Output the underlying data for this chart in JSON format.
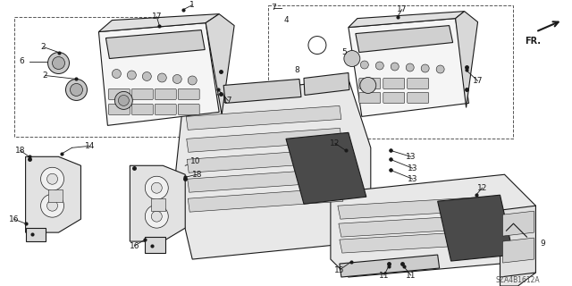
{
  "bg_color": "#ffffff",
  "diagram_id": "SZA4B1612A",
  "line_color": "#1a1a1a",
  "label_fontsize": 6.5,
  "leader_lw": 0.6,
  "part_lw": 0.8
}
